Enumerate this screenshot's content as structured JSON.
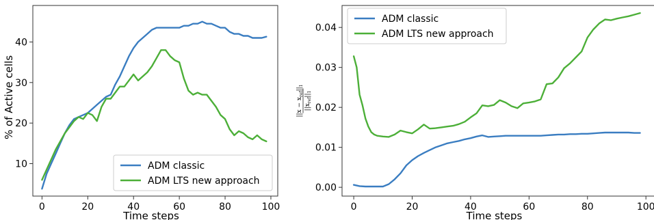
{
  "chart_data": [
    {
      "type": "line",
      "title": "",
      "xlabel": "Time steps",
      "ylabel": "% of Active cells",
      "xlim": [
        -4,
        103
      ],
      "ylim": [
        2,
        49
      ],
      "xticks": [
        0,
        20,
        40,
        60,
        80,
        100
      ],
      "yticks": [
        10,
        20,
        30,
        40
      ],
      "ytick_labels": [
        "10",
        "20",
        "30",
        "40"
      ],
      "grid": false,
      "legend_position": "lower-right",
      "series": [
        {
          "name": "ADM classic",
          "color": "#3a7dc1",
          "x": [
            0,
            2,
            4,
            6,
            8,
            10,
            12,
            14,
            16,
            18,
            20,
            22,
            24,
            26,
            28,
            30,
            32,
            34,
            36,
            38,
            40,
            42,
            44,
            46,
            48,
            50,
            52,
            54,
            56,
            58,
            60,
            62,
            64,
            66,
            68,
            70,
            72,
            74,
            76,
            78,
            80,
            82,
            84,
            86,
            88,
            90,
            92,
            94,
            96,
            98
          ],
          "values": [
            3.8,
            7.5,
            10.0,
            12.5,
            15.0,
            17.5,
            19.5,
            21.0,
            21.5,
            22.0,
            22.5,
            23.5,
            24.5,
            25.5,
            26.5,
            27.0,
            29.5,
            31.5,
            34.0,
            36.5,
            38.5,
            40.0,
            41.0,
            42.0,
            43.0,
            43.5,
            43.5,
            43.5,
            43.5,
            43.5,
            43.5,
            44.0,
            44.0,
            44.5,
            44.5,
            45.0,
            44.5,
            44.5,
            44.0,
            43.5,
            43.5,
            42.5,
            42.0,
            42.0,
            41.5,
            41.5,
            41.0,
            41.0,
            41.0,
            41.3
          ]
        },
        {
          "name": "ADM LTS new approach",
          "color": "#4caf38",
          "x": [
            0,
            2,
            4,
            6,
            8,
            10,
            12,
            14,
            16,
            18,
            20,
            22,
            24,
            26,
            28,
            30,
            32,
            34,
            36,
            38,
            40,
            42,
            44,
            46,
            48,
            50,
            52,
            54,
            56,
            58,
            60,
            62,
            64,
            66,
            68,
            70,
            72,
            74,
            76,
            78,
            80,
            82,
            84,
            86,
            88,
            90,
            92,
            94,
            96,
            98
          ],
          "values": [
            6.0,
            8.5,
            11.0,
            13.5,
            15.5,
            17.5,
            19.0,
            20.5,
            21.5,
            21.0,
            22.5,
            22.0,
            20.5,
            24.0,
            26.0,
            26.0,
            27.5,
            29.0,
            29.0,
            30.5,
            32.0,
            30.5,
            31.5,
            32.5,
            34.0,
            36.0,
            38.0,
            38.0,
            36.5,
            35.5,
            35.0,
            31.0,
            28.0,
            27.0,
            27.5,
            27.0,
            27.0,
            25.5,
            24.0,
            22.0,
            21.0,
            18.5,
            17.0,
            18.0,
            17.5,
            16.5,
            16.0,
            17.0,
            16.0,
            15.5
          ]
        }
      ]
    },
    {
      "type": "line",
      "title": "",
      "xlabel": "Time steps",
      "ylabel": "||x − x_ref||₁ / ||x_ref||₁",
      "ylabel_parts": {
        "numerator": "||x − x",
        "numerator_sub": "ref",
        "numerator_end": "||",
        "numerator_norm": "1",
        "denominator": "||x",
        "denominator_sub": "ref",
        "denominator_end": "||",
        "denominator_norm": "1"
      },
      "xlim": [
        -4,
        103
      ],
      "ylim": [
        -0.0022,
        0.0455
      ],
      "xticks": [
        0,
        20,
        40,
        60,
        80,
        100
      ],
      "yticks": [
        0.0,
        0.01,
        0.02,
        0.03,
        0.04
      ],
      "ytick_labels": [
        "0.00",
        "0.01",
        "0.02",
        "0.03",
        "0.04"
      ],
      "grid": false,
      "legend_position": "upper-left",
      "series": [
        {
          "name": "ADM classic",
          "color": "#3a7dc1",
          "x": [
            0,
            2,
            4,
            6,
            8,
            10,
            12,
            14,
            16,
            18,
            20,
            22,
            24,
            26,
            28,
            30,
            32,
            34,
            36,
            38,
            40,
            42,
            44,
            46,
            48,
            50,
            52,
            54,
            56,
            58,
            60,
            62,
            64,
            66,
            68,
            70,
            72,
            74,
            76,
            78,
            80,
            82,
            84,
            86,
            88,
            90,
            92,
            94,
            96,
            98
          ],
          "values": [
            0.0006,
            0.0003,
            0.0002,
            0.0002,
            0.0002,
            0.0002,
            0.0008,
            0.002,
            0.0035,
            0.0055,
            0.0068,
            0.0078,
            0.0086,
            0.0093,
            0.01,
            0.0105,
            0.011,
            0.0113,
            0.0116,
            0.012,
            0.0123,
            0.0127,
            0.013,
            0.0126,
            0.0127,
            0.0128,
            0.0129,
            0.0129,
            0.0129,
            0.0129,
            0.0129,
            0.0129,
            0.0129,
            0.013,
            0.0131,
            0.0132,
            0.0132,
            0.0133,
            0.0133,
            0.0134,
            0.0134,
            0.0135,
            0.0136,
            0.0137,
            0.0137,
            0.0137,
            0.0137,
            0.0137,
            0.0136,
            0.0136
          ]
        },
        {
          "name": "ADM LTS new approach",
          "color": "#4caf38",
          "x": [
            0,
            1,
            2,
            3,
            4,
            5,
            6,
            7,
            8,
            10,
            12,
            14,
            16,
            18,
            20,
            22,
            24,
            26,
            28,
            30,
            32,
            34,
            36,
            38,
            40,
            42,
            44,
            46,
            48,
            50,
            52,
            54,
            56,
            58,
            60,
            62,
            64,
            66,
            68,
            70,
            72,
            74,
            76,
            78,
            80,
            82,
            84,
            86,
            88,
            90,
            92,
            94,
            96,
            98
          ],
          "values": [
            0.0328,
            0.03,
            0.0232,
            0.0205,
            0.0172,
            0.0152,
            0.0138,
            0.0132,
            0.0129,
            0.0127,
            0.0126,
            0.0132,
            0.0142,
            0.0138,
            0.0135,
            0.0145,
            0.0157,
            0.0147,
            0.0148,
            0.015,
            0.0152,
            0.0154,
            0.0158,
            0.0164,
            0.0175,
            0.0185,
            0.0205,
            0.0203,
            0.0206,
            0.0218,
            0.0212,
            0.0203,
            0.0198,
            0.021,
            0.0212,
            0.0215,
            0.022,
            0.0258,
            0.026,
            0.0275,
            0.0298,
            0.031,
            0.0325,
            0.034,
            0.0375,
            0.0395,
            0.041,
            0.042,
            0.0418,
            0.0422,
            0.0425,
            0.0428,
            0.0432,
            0.0436
          ]
        }
      ]
    }
  ]
}
